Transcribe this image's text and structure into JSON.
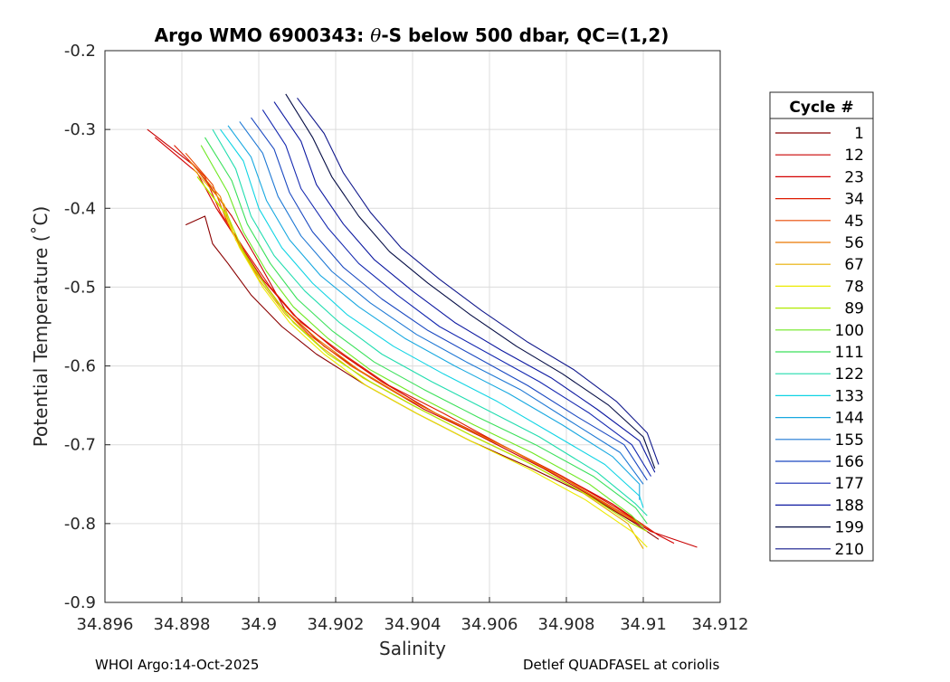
{
  "chart_data": {
    "type": "line",
    "title_prefix": "Argo WMO 6900343: ",
    "title_theta": "θ",
    "title_suffix": "-S below 500 dbar,  QC=(1,2)",
    "xlabel": "Salinity",
    "ylabel": "Potential Temperature (˚C)",
    "xlim": [
      34.896,
      34.912
    ],
    "ylim": [
      -0.9,
      -0.2
    ],
    "xticks": [
      34.896,
      34.898,
      34.9,
      34.902,
      34.904,
      34.906,
      34.908,
      34.91,
      34.912
    ],
    "xtick_labels": [
      "34.896",
      "34.898",
      "34.9",
      "34.902",
      "34.904",
      "34.906",
      "34.908",
      "34.91",
      "34.912"
    ],
    "yticks": [
      -0.9,
      -0.8,
      -0.7,
      -0.6,
      -0.5,
      -0.4,
      -0.3,
      -0.2
    ],
    "ytick_labels": [
      "-0.9",
      "-0.8",
      "-0.7",
      "-0.6",
      "-0.5",
      "-0.4",
      "-0.3",
      "-0.2"
    ],
    "grid": true,
    "legend_title": "Cycle #",
    "legend_position": "right-outside",
    "series": [
      {
        "name": "1",
        "color": "#8a0000",
        "points": [
          [
            34.8981,
            -0.421
          ],
          [
            34.8986,
            -0.41
          ],
          [
            34.8988,
            -0.445
          ],
          [
            34.8992,
            -0.47
          ],
          [
            34.8998,
            -0.51
          ],
          [
            34.9006,
            -0.55
          ],
          [
            34.9015,
            -0.585
          ],
          [
            34.9028,
            -0.625
          ],
          [
            34.9041,
            -0.66
          ],
          [
            34.9055,
            -0.695
          ],
          [
            34.9071,
            -0.73
          ],
          [
            34.9086,
            -0.765
          ],
          [
            34.9098,
            -0.8
          ],
          [
            34.9104,
            -0.82
          ]
        ]
      },
      {
        "name": "12",
        "color": "#c80000",
        "points": [
          [
            34.8971,
            -0.3
          ],
          [
            34.8983,
            -0.345
          ],
          [
            34.8987,
            -0.37
          ],
          [
            34.8993,
            -0.41
          ],
          [
            34.8999,
            -0.46
          ],
          [
            34.9007,
            -0.53
          ],
          [
            34.9017,
            -0.575
          ],
          [
            34.9029,
            -0.615
          ],
          [
            34.9043,
            -0.655
          ],
          [
            34.9058,
            -0.69
          ],
          [
            34.9074,
            -0.73
          ],
          [
            34.909,
            -0.775
          ],
          [
            34.9102,
            -0.81
          ],
          [
            34.9114,
            -0.83
          ]
        ]
      },
      {
        "name": "23",
        "color": "#d40000",
        "points": [
          [
            34.8973,
            -0.31
          ],
          [
            34.8984,
            -0.355
          ],
          [
            34.8989,
            -0.4
          ],
          [
            34.8995,
            -0.445
          ],
          [
            34.9001,
            -0.49
          ],
          [
            34.9009,
            -0.535
          ],
          [
            34.902,
            -0.58
          ],
          [
            34.9032,
            -0.62
          ],
          [
            34.9046,
            -0.66
          ],
          [
            34.9061,
            -0.695
          ],
          [
            34.9077,
            -0.735
          ],
          [
            34.9092,
            -0.775
          ],
          [
            34.9104,
            -0.815
          ],
          [
            34.9108,
            -0.825
          ]
        ]
      },
      {
        "name": "34",
        "color": "#de1a00",
        "points": [
          [
            34.8978,
            -0.32
          ],
          [
            34.8986,
            -0.36
          ],
          [
            34.899,
            -0.405
          ],
          [
            34.8996,
            -0.45
          ],
          [
            34.9003,
            -0.5
          ],
          [
            34.9011,
            -0.545
          ],
          [
            34.9022,
            -0.585
          ],
          [
            34.9034,
            -0.625
          ],
          [
            34.9048,
            -0.66
          ],
          [
            34.9063,
            -0.7
          ],
          [
            34.9079,
            -0.74
          ],
          [
            34.9093,
            -0.78
          ],
          [
            34.9103,
            -0.812
          ]
        ]
      },
      {
        "name": "45",
        "color": "#e84800",
        "points": [
          [
            34.8981,
            -0.33
          ],
          [
            34.8988,
            -0.37
          ],
          [
            34.8992,
            -0.42
          ],
          [
            34.8998,
            -0.47
          ],
          [
            34.9005,
            -0.52
          ],
          [
            34.9013,
            -0.56
          ],
          [
            34.9024,
            -0.6
          ],
          [
            34.9036,
            -0.635
          ],
          [
            34.905,
            -0.67
          ],
          [
            34.9065,
            -0.705
          ],
          [
            34.908,
            -0.745
          ],
          [
            34.9094,
            -0.785
          ],
          [
            34.9101,
            -0.805
          ]
        ]
      },
      {
        "name": "56",
        "color": "#ea7800",
        "points": [
          [
            34.8982,
            -0.34
          ],
          [
            34.899,
            -0.385
          ],
          [
            34.8993,
            -0.43
          ],
          [
            34.8999,
            -0.48
          ],
          [
            34.9006,
            -0.525
          ],
          [
            34.9015,
            -0.565
          ],
          [
            34.9026,
            -0.605
          ],
          [
            34.9038,
            -0.64
          ],
          [
            34.9052,
            -0.675
          ],
          [
            34.9067,
            -0.71
          ],
          [
            34.9082,
            -0.75
          ],
          [
            34.9095,
            -0.79
          ],
          [
            34.9099,
            -0.8
          ]
        ]
      },
      {
        "name": "67",
        "color": "#e8ae00",
        "points": [
          [
            34.8983,
            -0.35
          ],
          [
            34.8991,
            -0.395
          ],
          [
            34.8994,
            -0.44
          ],
          [
            34.9,
            -0.49
          ],
          [
            34.9007,
            -0.535
          ],
          [
            34.9016,
            -0.575
          ],
          [
            34.9027,
            -0.615
          ],
          [
            34.904,
            -0.65
          ],
          [
            34.9054,
            -0.685
          ],
          [
            34.9069,
            -0.72
          ],
          [
            34.9084,
            -0.76
          ],
          [
            34.9096,
            -0.8
          ],
          [
            34.91,
            -0.832
          ]
        ]
      },
      {
        "name": "78",
        "color": "#ecea00",
        "points": [
          [
            34.8984,
            -0.36
          ],
          [
            34.8991,
            -0.405
          ],
          [
            34.8995,
            -0.45
          ],
          [
            34.9001,
            -0.5
          ],
          [
            34.9008,
            -0.545
          ],
          [
            34.9017,
            -0.585
          ],
          [
            34.9028,
            -0.625
          ],
          [
            34.9041,
            -0.66
          ],
          [
            34.9055,
            -0.695
          ],
          [
            34.907,
            -0.73
          ],
          [
            34.9085,
            -0.77
          ],
          [
            34.9097,
            -0.81
          ],
          [
            34.9101,
            -0.83
          ]
        ]
      },
      {
        "name": "89",
        "color": "#b0ea00",
        "points": [
          [
            34.8984,
            -0.36
          ],
          [
            34.8992,
            -0.41
          ],
          [
            34.8996,
            -0.455
          ],
          [
            34.9002,
            -0.5
          ],
          [
            34.9009,
            -0.545
          ],
          [
            34.9018,
            -0.585
          ],
          [
            34.9029,
            -0.62
          ],
          [
            34.9042,
            -0.655
          ],
          [
            34.9056,
            -0.69
          ],
          [
            34.9071,
            -0.725
          ],
          [
            34.9086,
            -0.765
          ],
          [
            34.9097,
            -0.8
          ],
          [
            34.9101,
            -0.81
          ]
        ]
      },
      {
        "name": "100",
        "color": "#6ee820",
        "points": [
          [
            34.8985,
            -0.32
          ],
          [
            34.8992,
            -0.38
          ],
          [
            34.8996,
            -0.43
          ],
          [
            34.9002,
            -0.48
          ],
          [
            34.9009,
            -0.525
          ],
          [
            34.9018,
            -0.565
          ],
          [
            34.9029,
            -0.605
          ],
          [
            34.9042,
            -0.64
          ],
          [
            34.9056,
            -0.675
          ],
          [
            34.9071,
            -0.71
          ],
          [
            34.9086,
            -0.75
          ],
          [
            34.9097,
            -0.79
          ],
          [
            34.91,
            -0.805
          ]
        ]
      },
      {
        "name": "111",
        "color": "#3ae05a",
        "points": [
          [
            34.8986,
            -0.31
          ],
          [
            34.8993,
            -0.365
          ],
          [
            34.8997,
            -0.42
          ],
          [
            34.9003,
            -0.47
          ],
          [
            34.901,
            -0.515
          ],
          [
            34.9019,
            -0.555
          ],
          [
            34.903,
            -0.595
          ],
          [
            34.9043,
            -0.63
          ],
          [
            34.9057,
            -0.665
          ],
          [
            34.9072,
            -0.7
          ],
          [
            34.9087,
            -0.74
          ],
          [
            34.9098,
            -0.78
          ],
          [
            34.9101,
            -0.8
          ]
        ]
      },
      {
        "name": "122",
        "color": "#20dcae",
        "points": [
          [
            34.8988,
            -0.3
          ],
          [
            34.8994,
            -0.35
          ],
          [
            34.8998,
            -0.41
          ],
          [
            34.9004,
            -0.46
          ],
          [
            34.9012,
            -0.505
          ],
          [
            34.9021,
            -0.545
          ],
          [
            34.9032,
            -0.585
          ],
          [
            34.9045,
            -0.62
          ],
          [
            34.9059,
            -0.655
          ],
          [
            34.9073,
            -0.69
          ],
          [
            34.9088,
            -0.735
          ],
          [
            34.9098,
            -0.775
          ],
          [
            34.9101,
            -0.79
          ]
        ]
      },
      {
        "name": "133",
        "color": "#10d4e4",
        "points": [
          [
            34.899,
            -0.3
          ],
          [
            34.8996,
            -0.34
          ],
          [
            34.9,
            -0.4
          ],
          [
            34.9006,
            -0.45
          ],
          [
            34.9014,
            -0.495
          ],
          [
            34.9023,
            -0.535
          ],
          [
            34.9035,
            -0.575
          ],
          [
            34.9048,
            -0.61
          ],
          [
            34.9062,
            -0.645
          ],
          [
            34.9076,
            -0.685
          ],
          [
            34.909,
            -0.725
          ],
          [
            34.9099,
            -0.765
          ],
          [
            34.91,
            -0.78
          ]
        ]
      },
      {
        "name": "144",
        "color": "#18a8e0",
        "points": [
          [
            34.8992,
            -0.295
          ],
          [
            34.8998,
            -0.335
          ],
          [
            34.9002,
            -0.39
          ],
          [
            34.9008,
            -0.44
          ],
          [
            34.9016,
            -0.485
          ],
          [
            34.9026,
            -0.525
          ],
          [
            34.9038,
            -0.565
          ],
          [
            34.9051,
            -0.6
          ],
          [
            34.9065,
            -0.635
          ],
          [
            34.9079,
            -0.675
          ],
          [
            34.9092,
            -0.715
          ],
          [
            34.9099,
            -0.75
          ],
          [
            34.9099,
            -0.77
          ]
        ]
      },
      {
        "name": "155",
        "color": "#1e78d4",
        "points": [
          [
            34.8995,
            -0.29
          ],
          [
            34.9001,
            -0.33
          ],
          [
            34.9005,
            -0.385
          ],
          [
            34.9011,
            -0.435
          ],
          [
            34.9019,
            -0.48
          ],
          [
            34.9029,
            -0.52
          ],
          [
            34.9041,
            -0.56
          ],
          [
            34.9054,
            -0.595
          ],
          [
            34.9068,
            -0.63
          ],
          [
            34.9081,
            -0.67
          ],
          [
            34.9094,
            -0.71
          ],
          [
            34.91,
            -0.75
          ]
        ]
      },
      {
        "name": "166",
        "color": "#1a48c0",
        "points": [
          [
            34.8998,
            -0.285
          ],
          [
            34.9004,
            -0.325
          ],
          [
            34.9008,
            -0.38
          ],
          [
            34.9014,
            -0.43
          ],
          [
            34.9022,
            -0.475
          ],
          [
            34.9032,
            -0.515
          ],
          [
            34.9044,
            -0.555
          ],
          [
            34.9057,
            -0.59
          ],
          [
            34.907,
            -0.625
          ],
          [
            34.9083,
            -0.665
          ],
          [
            34.9095,
            -0.7
          ],
          [
            34.9101,
            -0.745
          ]
        ]
      },
      {
        "name": "177",
        "color": "#1428b0",
        "points": [
          [
            34.9001,
            -0.275
          ],
          [
            34.9007,
            -0.32
          ],
          [
            34.9011,
            -0.375
          ],
          [
            34.9018,
            -0.425
          ],
          [
            34.9026,
            -0.47
          ],
          [
            34.9036,
            -0.51
          ],
          [
            34.9047,
            -0.55
          ],
          [
            34.906,
            -0.585
          ],
          [
            34.9073,
            -0.62
          ],
          [
            34.9086,
            -0.66
          ],
          [
            34.9097,
            -0.7
          ],
          [
            34.9102,
            -0.74
          ]
        ]
      },
      {
        "name": "188",
        "color": "#0c18a0",
        "points": [
          [
            34.9004,
            -0.265
          ],
          [
            34.9011,
            -0.315
          ],
          [
            34.9015,
            -0.37
          ],
          [
            34.9022,
            -0.42
          ],
          [
            34.903,
            -0.465
          ],
          [
            34.904,
            -0.505
          ],
          [
            34.9051,
            -0.545
          ],
          [
            34.9063,
            -0.58
          ],
          [
            34.9076,
            -0.615
          ],
          [
            34.9088,
            -0.655
          ],
          [
            34.9099,
            -0.695
          ],
          [
            34.9103,
            -0.735
          ]
        ]
      },
      {
        "name": "199",
        "color": "#040c44",
        "points": [
          [
            34.9007,
            -0.255
          ],
          [
            34.9014,
            -0.31
          ],
          [
            34.9019,
            -0.36
          ],
          [
            34.9026,
            -0.41
          ],
          [
            34.9034,
            -0.455
          ],
          [
            34.9044,
            -0.495
          ],
          [
            34.9055,
            -0.535
          ],
          [
            34.9067,
            -0.575
          ],
          [
            34.9079,
            -0.61
          ],
          [
            34.9091,
            -0.65
          ],
          [
            34.91,
            -0.69
          ],
          [
            34.9103,
            -0.73
          ]
        ]
      },
      {
        "name": "210",
        "color": "#10188c",
        "points": [
          [
            34.901,
            -0.26
          ],
          [
            34.9017,
            -0.305
          ],
          [
            34.9022,
            -0.355
          ],
          [
            34.9029,
            -0.405
          ],
          [
            34.9037,
            -0.45
          ],
          [
            34.9047,
            -0.49
          ],
          [
            34.9058,
            -0.53
          ],
          [
            34.907,
            -0.57
          ],
          [
            34.9082,
            -0.605
          ],
          [
            34.9093,
            -0.645
          ],
          [
            34.9101,
            -0.685
          ],
          [
            34.9104,
            -0.725
          ]
        ]
      }
    ]
  },
  "footer": {
    "left": "WHOI Argo:14-Oct-2025",
    "right": "Detlef QUADFASEL at coriolis"
  }
}
